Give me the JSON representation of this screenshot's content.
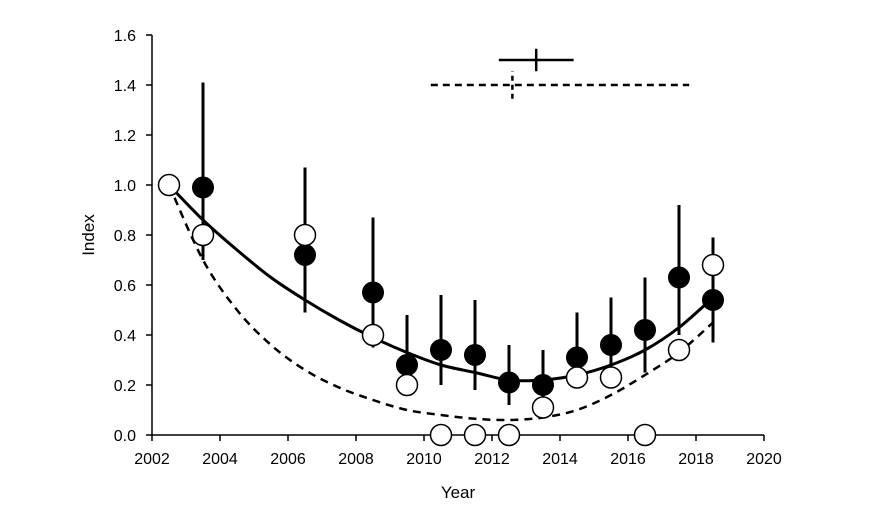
{
  "chart_data": {
    "type": "scatter",
    "title": "",
    "xlabel": "Year",
    "ylabel": "Index",
    "xlim": [
      2002,
      2020
    ],
    "ylim": [
      0.0,
      1.6
    ],
    "x_ticks": [
      "2002",
      "2004",
      "2006",
      "2008",
      "2010",
      "2012",
      "2014",
      "2016",
      "2018",
      "2020"
    ],
    "y_ticks": [
      "0.0",
      "0.2",
      "0.4",
      "0.6",
      "0.8",
      "1.0",
      "1.2",
      "1.4",
      "1.6"
    ],
    "grid": false,
    "legend": "none",
    "series": [
      {
        "marker": "filled-circle",
        "color": "#000000",
        "points": [
          {
            "x": 2003.5,
            "y": 0.99,
            "lo": 0.7,
            "hi": 1.41
          },
          {
            "x": 2006.5,
            "y": 0.72,
            "lo": 0.49,
            "hi": 1.07
          },
          {
            "x": 2008.5,
            "y": 0.57,
            "lo": 0.35,
            "hi": 0.87
          },
          {
            "x": 2009.5,
            "y": 0.28,
            "lo": 0.18,
            "hi": 0.48
          },
          {
            "x": 2010.5,
            "y": 0.34,
            "lo": 0.2,
            "hi": 0.56
          },
          {
            "x": 2011.5,
            "y": 0.32,
            "lo": 0.18,
            "hi": 0.54
          },
          {
            "x": 2012.5,
            "y": 0.21,
            "lo": 0.12,
            "hi": 0.36
          },
          {
            "x": 2013.5,
            "y": 0.2,
            "lo": 0.12,
            "hi": 0.34
          },
          {
            "x": 2014.5,
            "y": 0.31,
            "lo": 0.19,
            "hi": 0.49
          },
          {
            "x": 2015.5,
            "y": 0.36,
            "lo": 0.22,
            "hi": 0.55
          },
          {
            "x": 2016.5,
            "y": 0.42,
            "lo": 0.25,
            "hi": 0.63
          },
          {
            "x": 2017.5,
            "y": 0.63,
            "lo": 0.4,
            "hi": 0.92
          },
          {
            "x": 2018.5,
            "y": 0.54,
            "lo": 0.37,
            "hi": 0.79
          }
        ],
        "fit": [
          [
            2002.5,
            1.0
          ],
          [
            2003.5,
            0.86
          ],
          [
            2004.5,
            0.74
          ],
          [
            2005.5,
            0.63
          ],
          [
            2006.5,
            0.54
          ],
          [
            2007.5,
            0.46
          ],
          [
            2008.5,
            0.39
          ],
          [
            2009.5,
            0.33
          ],
          [
            2010.5,
            0.28
          ],
          [
            2011.5,
            0.25
          ],
          [
            2012.5,
            0.22
          ],
          [
            2013.5,
            0.22
          ],
          [
            2014.5,
            0.24
          ],
          [
            2015.5,
            0.28
          ],
          [
            2016.5,
            0.34
          ],
          [
            2017.5,
            0.43
          ],
          [
            2018.5,
            0.55
          ]
        ]
      },
      {
        "marker": "open-circle",
        "color": "#000000",
        "points": [
          {
            "x": 2002.5,
            "y": 1.0
          },
          {
            "x": 2003.5,
            "y": 0.8
          },
          {
            "x": 2006.5,
            "y": 0.8
          },
          {
            "x": 2008.5,
            "y": 0.4
          },
          {
            "x": 2009.5,
            "y": 0.2
          },
          {
            "x": 2010.5,
            "y": 0.0
          },
          {
            "x": 2011.5,
            "y": 0.0
          },
          {
            "x": 2012.5,
            "y": 0.0
          },
          {
            "x": 2013.5,
            "y": 0.11
          },
          {
            "x": 2014.5,
            "y": 0.23
          },
          {
            "x": 2015.5,
            "y": 0.23
          },
          {
            "x": 2016.5,
            "y": 0.0
          },
          {
            "x": 2017.5,
            "y": 0.34
          },
          {
            "x": 2018.5,
            "y": 0.68
          }
        ],
        "fit": [
          [
            2002.5,
            1.0
          ],
          [
            2003.5,
            0.7
          ],
          [
            2004.5,
            0.5
          ],
          [
            2005.5,
            0.36
          ],
          [
            2006.5,
            0.26
          ],
          [
            2007.5,
            0.19
          ],
          [
            2008.5,
            0.14
          ],
          [
            2009.5,
            0.1
          ],
          [
            2010.5,
            0.08
          ],
          [
            2011.5,
            0.065
          ],
          [
            2012.5,
            0.06
          ],
          [
            2013.5,
            0.07
          ],
          [
            2014.5,
            0.1
          ],
          [
            2015.5,
            0.16
          ],
          [
            2016.5,
            0.24
          ],
          [
            2017.5,
            0.33
          ],
          [
            2018.5,
            0.45
          ]
        ]
      }
    ],
    "annotations": [
      {
        "style": "solid",
        "center_x": 2013.3,
        "y": 1.5,
        "x_range": [
          2012.2,
          2014.4
        ],
        "v_range": [
          1.455,
          1.545
        ]
      },
      {
        "style": "dashed",
        "center_x": 2012.6,
        "y": 1.4,
        "x_range": [
          2010.2,
          2017.8
        ],
        "v_range": [
          1.345,
          1.455
        ]
      }
    ]
  }
}
